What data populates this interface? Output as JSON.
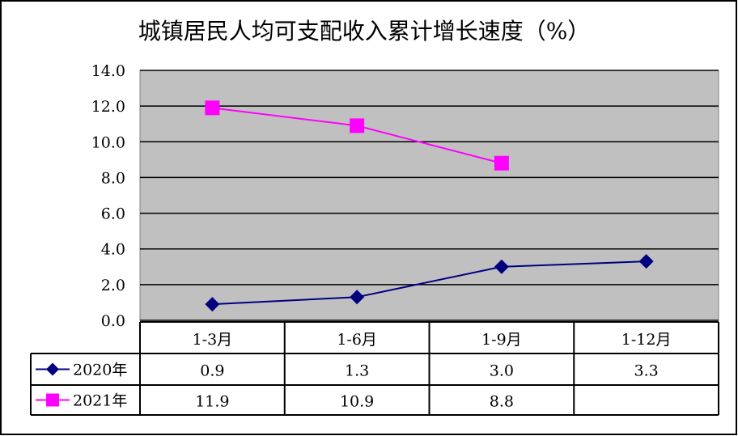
{
  "chart_data": {
    "type": "line",
    "title": "城镇居民人均可支配收入累计增长速度（%）",
    "categories": [
      "1-3月",
      "1-6月",
      "1-9月",
      "1-12月"
    ],
    "ylim": [
      0,
      14
    ],
    "yticks": [
      "0.0",
      "2.0",
      "4.0",
      "6.0",
      "8.0",
      "10.0",
      "12.0",
      "14.0"
    ],
    "grid": true,
    "legend": "data-table-left",
    "series": [
      {
        "name": "2020年",
        "values": [
          0.9,
          1.3,
          3.0,
          3.3
        ],
        "labels": [
          "0.9",
          "1.3",
          "3.0",
          "3.3"
        ],
        "color": "#000080",
        "marker": "diamond"
      },
      {
        "name": "2021年",
        "values": [
          11.9,
          10.9,
          8.8,
          null
        ],
        "labels": [
          "11.9",
          "10.9",
          "8.8",
          ""
        ],
        "color": "#FF00FF",
        "marker": "square"
      }
    ],
    "plot_bg": "#C0C0C0"
  }
}
